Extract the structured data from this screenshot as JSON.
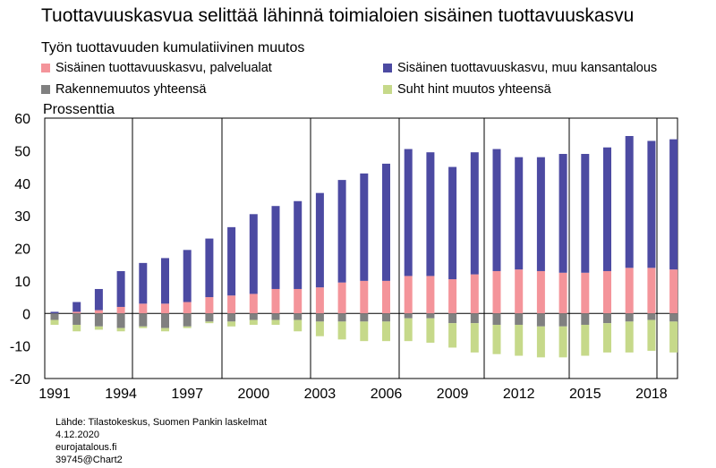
{
  "title": "Tuottavuuskasvua selittää lähinnä toimialoien sisäinen tuottavuuskasvu",
  "chart_data": {
    "type": "bar",
    "stacked": true,
    "title": "Tuottavuuskasvua selittää lähinnä toimialoien sisäinen tuottavuuskasvu",
    "subtitle": "Työn tuottavuuden kumulatiivinen muutos",
    "ylabel": "Prossenttia",
    "ylim": [
      -20,
      60
    ],
    "yticks": [
      "60",
      "50",
      "40",
      "30",
      "20",
      "10",
      "0",
      "-10",
      "-20"
    ],
    "xtick_labels": [
      "1991",
      "1994",
      "1997",
      "2000",
      "2003",
      "2006",
      "2009",
      "2012",
      "2015",
      "2018"
    ],
    "grid": "vertical lines every 3 years",
    "categories": [
      "1991",
      "1992",
      "1993",
      "1994",
      "1995",
      "1996",
      "1997",
      "1998",
      "1999",
      "2000",
      "2001",
      "2002",
      "2003",
      "2004",
      "2005",
      "2006",
      "2007",
      "2008",
      "2009",
      "2010",
      "2011",
      "2012",
      "2013",
      "2014",
      "2015",
      "2016",
      "2017",
      "2018",
      "2019"
    ],
    "series": [
      {
        "name": "Sisäinen tuottavuuskasvu, palvelualat",
        "color": "#f4949a",
        "values": [
          0,
          0.5,
          1,
          2,
          3,
          3,
          3.5,
          5,
          5.5,
          6,
          7.5,
          7.5,
          8,
          9.5,
          10,
          10,
          11.5,
          11.5,
          10.5,
          12,
          13,
          13.5,
          13,
          12.5,
          12.5,
          13,
          14,
          14,
          13.5
        ]
      },
      {
        "name": "Sisäinen tuottavuuskasvu, muu kansantalous",
        "color": "#4c4aa2",
        "values": [
          0.5,
          3,
          6.5,
          11,
          12.5,
          14,
          16,
          18,
          21,
          24.5,
          25.5,
          27,
          29,
          31.5,
          33,
          36,
          39,
          38,
          34.5,
          37.5,
          37.5,
          34.5,
          35,
          36.5,
          36.5,
          38,
          40.5,
          39,
          40
        ]
      },
      {
        "name": "Rakennemuutos yhteensä",
        "color": "#808080",
        "values": [
          -2,
          -3.5,
          -4,
          -4.5,
          -4,
          -4.5,
          -4,
          -2.5,
          -2.5,
          -2,
          -2,
          -2,
          -2.5,
          -2.5,
          -2.5,
          -2.5,
          -1.5,
          -1.5,
          -3,
          -3,
          -3.5,
          -3.5,
          -4,
          -4,
          -3.5,
          -3,
          -2.5,
          -2,
          -2.5
        ]
      },
      {
        "name": "Suht hint muutos yhteensä",
        "color": "#c6d98a",
        "values": [
          -1.5,
          -2,
          -1,
          -1,
          -0.5,
          -1,
          -0.5,
          -0.5,
          -1.5,
          -1.5,
          -1.5,
          -3.5,
          -4.5,
          -5.5,
          -6,
          -6,
          -7,
          -7.5,
          -7.5,
          -9,
          -9,
          -9.5,
          -9.5,
          -9.5,
          -9.5,
          -9,
          -9.5,
          -9.5,
          -9.5
        ]
      }
    ]
  },
  "footer": {
    "source": "Lähde: Tilastokeskus, Suomen Pankin laskelmat",
    "date": "4.12.2020",
    "site": "eurojatalous.fi",
    "chart_id": "39745@Chart2"
  }
}
